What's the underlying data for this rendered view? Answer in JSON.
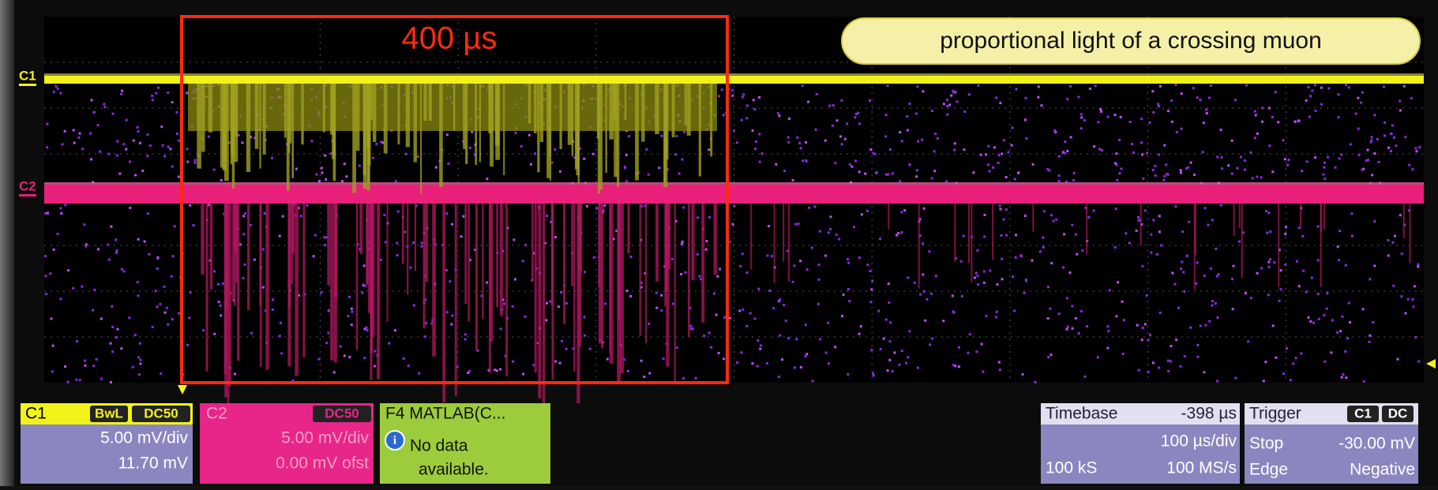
{
  "scope": {
    "window_label": "400 µs",
    "annotation": "proportional light of a crossing muon",
    "trace_labels": {
      "c1": "C1",
      "c2": "C2"
    },
    "channels": [
      {
        "name": "C1",
        "badges": [
          "BwL",
          "DC50"
        ],
        "scale": "5.00 mV/div",
        "offset": "11.70 mV"
      },
      {
        "name": "C2",
        "badges": [
          "DC50"
        ],
        "scale": "5.00 mV/div",
        "offset": "0.00 mV ofst"
      }
    ],
    "math": {
      "name": "F4 MATLAB(C...",
      "message_line1": "No data",
      "message_line2": "available."
    },
    "timebase": {
      "title": "Timebase",
      "delay": "-398 µs",
      "scale": "100 µs/div",
      "samples": "100 kS",
      "rate": "100 MS/s"
    },
    "trigger": {
      "title": "Trigger",
      "source": "C1",
      "coupling": "DC",
      "mode": "Stop",
      "level": "-30.00 mV",
      "type": "Edge",
      "slope": "Negative"
    }
  }
}
